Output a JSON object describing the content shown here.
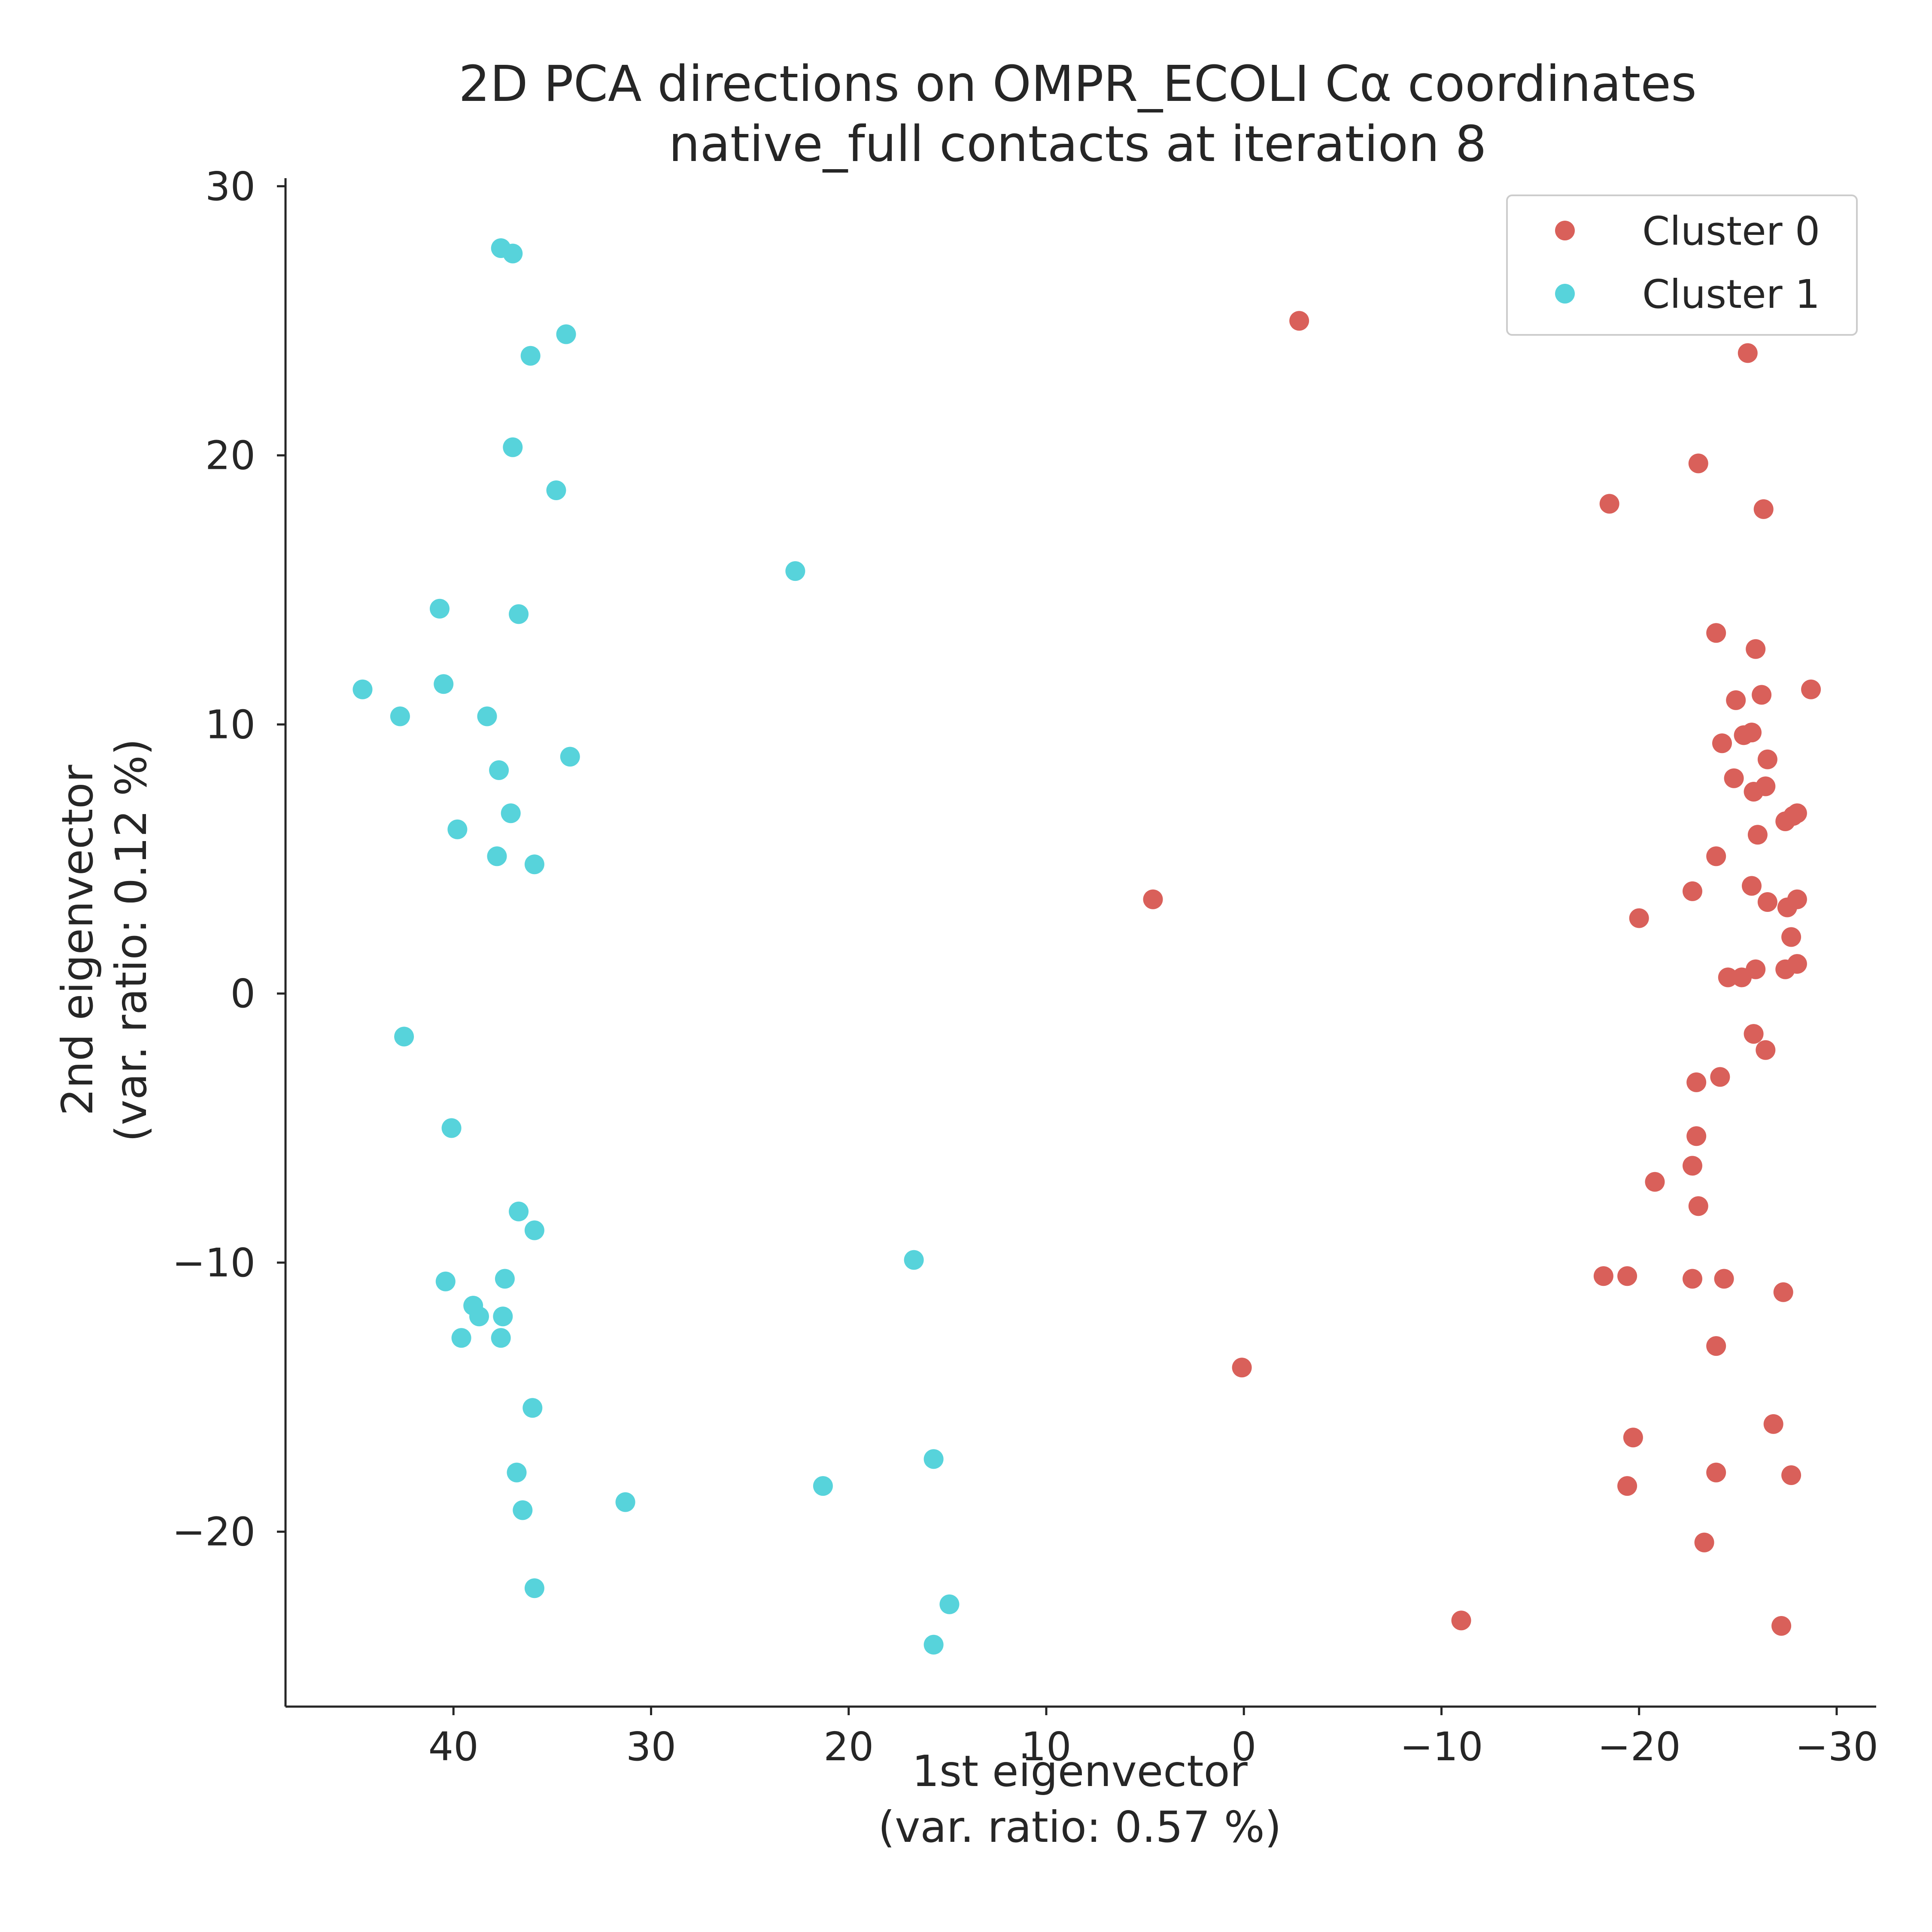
{
  "chart_data": {
    "type": "scatter",
    "title": "2D PCA directions on OMPR_ECOLI Cα coordinates",
    "subtitle": "native_full contacts at iteration 8",
    "xlabel": "1st eigenvector",
    "xlabel_note": "(var. ratio: 0.57 %)",
    "ylabel": "2nd eigenvector",
    "ylabel_note": "(var. ratio: 0.12 %)",
    "xlim": [
      48.5,
      -32.0
    ],
    "ylim": [
      -26.5,
      30.3
    ],
    "x_axis_reversed": true,
    "xticks": [
      40,
      30,
      20,
      10,
      0,
      -10,
      -20,
      -30
    ],
    "yticks": [
      -20,
      -10,
      0,
      10,
      20,
      30
    ],
    "xtick_labels": [
      "40",
      "30",
      "20",
      "10",
      "0",
      "−10",
      "−20",
      "−30"
    ],
    "ytick_labels": [
      "−20",
      "−10",
      "0",
      "10",
      "20",
      "30"
    ],
    "grid": false,
    "legend_position": "top-right",
    "series": [
      {
        "name": "Cluster 0",
        "color": "#d9605a",
        "points": [
          [
            -2.8,
            25.0
          ],
          [
            -25.5,
            23.8
          ],
          [
            -23.0,
            19.7
          ],
          [
            -18.5,
            18.2
          ],
          [
            -26.3,
            18.0
          ],
          [
            -23.9,
            13.4
          ],
          [
            -25.9,
            12.8
          ],
          [
            -28.7,
            11.3
          ],
          [
            -24.9,
            10.9
          ],
          [
            -26.2,
            11.1
          ],
          [
            -25.3,
            9.6
          ],
          [
            -25.7,
            9.7
          ],
          [
            -24.2,
            9.3
          ],
          [
            -26.5,
            8.7
          ],
          [
            -24.8,
            8.0
          ],
          [
            -25.8,
            7.5
          ],
          [
            -26.4,
            7.7
          ],
          [
            -27.8,
            6.6
          ],
          [
            -28.0,
            6.7
          ],
          [
            -27.4,
            6.4
          ],
          [
            -26.0,
            5.9
          ],
          [
            -23.9,
            5.1
          ],
          [
            -25.7,
            4.0
          ],
          [
            -22.7,
            3.8
          ],
          [
            -26.5,
            3.4
          ],
          [
            -28.0,
            3.5
          ],
          [
            -27.5,
            3.2
          ],
          [
            4.6,
            3.5
          ],
          [
            -20.0,
            2.8
          ],
          [
            -27.7,
            2.1
          ],
          [
            -24.5,
            0.6
          ],
          [
            -25.2,
            0.6
          ],
          [
            -25.9,
            0.9
          ],
          [
            -27.4,
            0.9
          ],
          [
            -28.0,
            1.1
          ],
          [
            -25.8,
            -1.5
          ],
          [
            -26.4,
            -2.1
          ],
          [
            -22.9,
            -3.3
          ],
          [
            -24.1,
            -3.1
          ],
          [
            -22.9,
            -5.3
          ],
          [
            -22.7,
            -6.4
          ],
          [
            -20.8,
            -7.0
          ],
          [
            -23.0,
            -7.9
          ],
          [
            -18.2,
            -10.5
          ],
          [
            -19.4,
            -10.5
          ],
          [
            -22.7,
            -10.6
          ],
          [
            -24.3,
            -10.6
          ],
          [
            -27.3,
            -11.1
          ],
          [
            -23.9,
            -13.1
          ],
          [
            0.1,
            -13.9
          ],
          [
            -26.8,
            -16.0
          ],
          [
            -19.7,
            -16.5
          ],
          [
            -23.9,
            -17.8
          ],
          [
            -19.4,
            -18.3
          ],
          [
            -27.7,
            -17.9
          ],
          [
            -23.3,
            -20.4
          ],
          [
            -11.0,
            -23.3
          ],
          [
            -27.2,
            -23.5
          ]
        ]
      },
      {
        "name": "Cluster 1",
        "color": "#57d3db",
        "points": [
          [
            37.6,
            27.7
          ],
          [
            37.0,
            27.5
          ],
          [
            34.3,
            24.5
          ],
          [
            36.1,
            23.7
          ],
          [
            37.0,
            20.3
          ],
          [
            34.8,
            18.7
          ],
          [
            22.7,
            15.7
          ],
          [
            40.7,
            14.3
          ],
          [
            36.7,
            14.1
          ],
          [
            44.6,
            11.3
          ],
          [
            40.5,
            11.5
          ],
          [
            42.7,
            10.3
          ],
          [
            38.3,
            10.3
          ],
          [
            34.1,
            8.8
          ],
          [
            37.7,
            8.3
          ],
          [
            39.8,
            6.1
          ],
          [
            37.1,
            6.7
          ],
          [
            37.8,
            5.1
          ],
          [
            35.9,
            4.8
          ],
          [
            42.5,
            -1.6
          ],
          [
            40.1,
            -5.0
          ],
          [
            36.7,
            -8.1
          ],
          [
            35.9,
            -8.8
          ],
          [
            16.7,
            -9.9
          ],
          [
            40.4,
            -10.7
          ],
          [
            37.4,
            -10.6
          ],
          [
            39.0,
            -11.6
          ],
          [
            38.7,
            -12.0
          ],
          [
            37.5,
            -12.0
          ],
          [
            39.6,
            -12.8
          ],
          [
            37.6,
            -12.8
          ],
          [
            36.0,
            -15.4
          ],
          [
            15.7,
            -17.3
          ],
          [
            21.3,
            -18.3
          ],
          [
            36.8,
            -17.8
          ],
          [
            31.3,
            -18.9
          ],
          [
            36.5,
            -19.2
          ],
          [
            35.9,
            -22.1
          ],
          [
            14.9,
            -22.7
          ],
          [
            15.7,
            -24.2
          ]
        ]
      }
    ]
  }
}
